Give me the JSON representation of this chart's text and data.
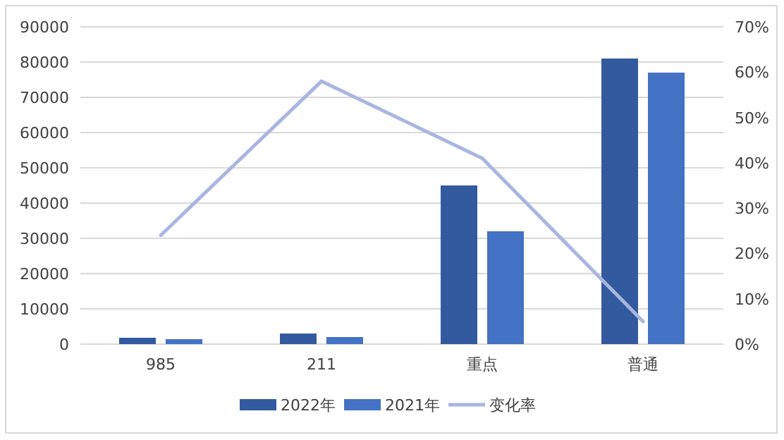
{
  "chart_data": {
    "type": "bar",
    "categories": [
      "985",
      "211",
      "重点",
      "普通"
    ],
    "series": [
      {
        "name": "2022年",
        "color": "#335a9f",
        "values": [
          1800,
          3000,
          45000,
          81000
        ]
      },
      {
        "name": "2021年",
        "color": "#4472c4",
        "values": [
          1400,
          2000,
          32000,
          77000
        ]
      },
      {
        "name": "变化率",
        "type": "line",
        "axis": "y2",
        "color": "#a9b6e0",
        "values": [
          24,
          58,
          41,
          5
        ]
      }
    ],
    "ylim": [
      0,
      90000
    ],
    "yticks": [
      0,
      10000,
      20000,
      30000,
      40000,
      50000,
      60000,
      70000,
      80000,
      90000
    ],
    "y2lim": [
      0,
      70
    ],
    "y2ticks": [
      {
        "value": 0,
        "label": "0%"
      },
      {
        "value": 10,
        "label": "10%"
      },
      {
        "value": 20,
        "label": "20%"
      },
      {
        "value": 30,
        "label": "30%"
      },
      {
        "value": 40,
        "label": "40%"
      },
      {
        "value": 50,
        "label": "50%"
      },
      {
        "value": 60,
        "label": "60%"
      },
      {
        "value": 70,
        "label": "70%"
      }
    ],
    "grid": "y",
    "legend": "bottom",
    "marker": "none"
  }
}
